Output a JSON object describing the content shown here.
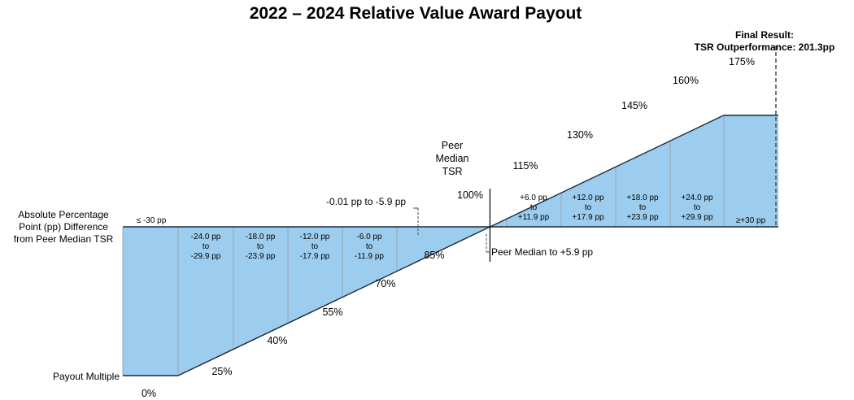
{
  "chart_data": {
    "type": "area",
    "title": "2022 – 2024 Relative Value Award Payout",
    "x_axis_label": [
      "Absolute Percentage",
      "Point (pp) Difference",
      "from Peer Median TSR"
    ],
    "y_axis_label": "Payout Multiple",
    "peer_median_label": [
      "Peer",
      "Median",
      "TSR"
    ],
    "bands": [
      {
        "label": [
          "≤ -30 pp"
        ],
        "payout_pct": 0
      },
      {
        "label": [
          "-24.0 pp",
          "to",
          "-29.9 pp"
        ],
        "payout_pct": 25
      },
      {
        "label": [
          "-18.0 pp",
          "to",
          "-23.9 pp"
        ],
        "payout_pct": 40
      },
      {
        "label": [
          "-12.0 pp",
          "to",
          "-17.9 pp"
        ],
        "payout_pct": 55
      },
      {
        "label": [
          "-6.0 pp",
          "to",
          "-11.9 pp"
        ],
        "payout_pct": 70
      },
      {
        "label": [],
        "payout_pct": 85
      },
      {
        "label": [],
        "payout_pct": 100
      },
      {
        "label": [
          "+6.0 pp",
          "to",
          "+11.9 pp"
        ],
        "payout_pct": 115
      },
      {
        "label": [
          "+12.0 pp",
          "to",
          "+17.9 pp"
        ],
        "payout_pct": 130
      },
      {
        "label": [
          "+18.0 pp",
          "to",
          "+23.9 pp"
        ],
        "payout_pct": 145
      },
      {
        "label": [
          "+24.0 pp",
          "to",
          "+29.9 pp"
        ],
        "payout_pct": 160
      },
      {
        "label": [
          "≥+30 pp"
        ],
        "payout_pct": 175
      }
    ],
    "payout_labels": [
      "0%",
      "25%",
      "40%",
      "55%",
      "70%",
      "85%",
      "100%",
      "115%",
      "130%",
      "145%",
      "160%",
      "175%"
    ],
    "callouts": {
      "below_median": "-0.01 pp to -5.9 pp",
      "above_median": "Peer Median to +5.9 pp"
    },
    "final_result": {
      "line1": "Final Result:",
      "line2": "TSR Outperformance: 201.3pp",
      "value_pp": 201.3
    },
    "colors": {
      "fill": "#9dcdee",
      "line": "#1b2a3a",
      "divider": "#9aa4ad",
      "dashed": "#555555"
    }
  }
}
